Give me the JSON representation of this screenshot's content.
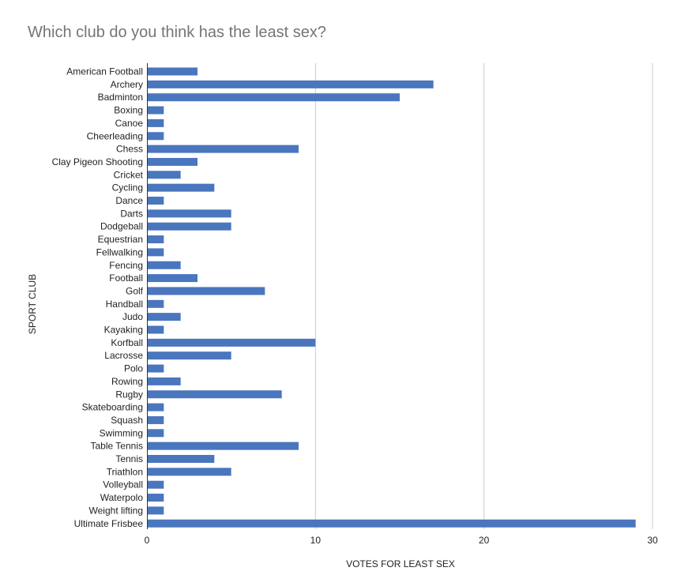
{
  "chart_data": {
    "type": "bar",
    "orientation": "horizontal",
    "title": "Which club do you think has the least sex?",
    "xlabel": "VOTES FOR LEAST SEX",
    "ylabel": "SPORT CLUB",
    "xlim": [
      0,
      30
    ],
    "x_ticks": [
      0,
      10,
      20,
      30
    ],
    "x_tick_labels": [
      "0",
      "10",
      "20",
      "30"
    ],
    "grid": "vertical",
    "bar_color": "#4a76be",
    "categories": [
      "American Football",
      "Archery",
      "Badminton",
      "Boxing",
      "Canoe",
      "Cheerleading",
      "Chess",
      "Clay Pigeon Shooting",
      "Cricket",
      "Cycling",
      "Dance",
      "Darts",
      "Dodgeball",
      "Equestrian",
      "Fellwalking",
      "Fencing",
      "Football",
      "Golf",
      "Handball",
      "Judo",
      "Kayaking",
      "Korfball",
      "Lacrosse",
      "Polo",
      "Rowing",
      "Rugby",
      "Skateboarding",
      "Squash",
      "Swimming",
      "Table Tennis",
      "Tennis",
      "Triathlon",
      "Volleyball",
      "Waterpolo",
      "Weight lifting",
      "Ultimate Frisbee"
    ],
    "values": [
      3,
      17,
      15,
      1,
      1,
      1,
      9,
      3,
      2,
      4,
      1,
      5,
      5,
      1,
      1,
      2,
      3,
      7,
      1,
      2,
      1,
      10,
      5,
      1,
      2,
      8,
      1,
      1,
      1,
      9,
      4,
      5,
      1,
      1,
      1,
      29
    ]
  }
}
